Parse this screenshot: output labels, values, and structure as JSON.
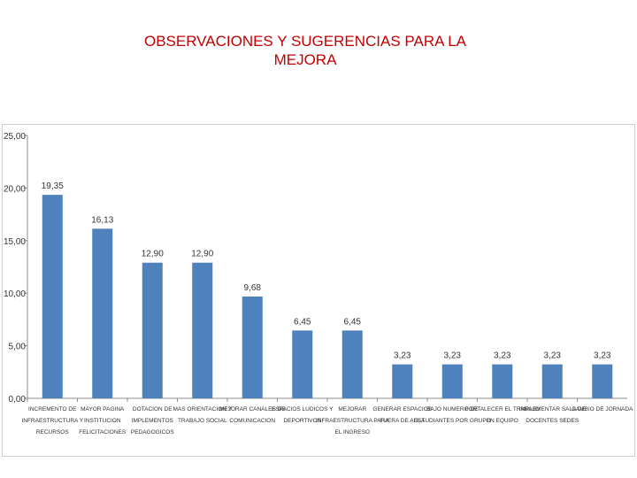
{
  "page": {
    "title_line1": "OBSERVACIONES Y SUGERENCIAS  PARA LA",
    "title_line2": "MEJORA"
  },
  "colors": {
    "title": "#c00000",
    "bar": "#4f81bd",
    "axis": "#8c8c8c"
  },
  "chart_data": {
    "type": "bar",
    "title": "",
    "xlabel": "",
    "ylabel": "",
    "ylim": [
      0,
      25
    ],
    "yticks": [
      "0,00",
      "5,00",
      "10,00",
      "15,00",
      "20,00",
      "25,00"
    ],
    "ytick_values": [
      0,
      5,
      10,
      15,
      20,
      25
    ],
    "grid": false,
    "categories": [
      [
        "INCREMENTO DE",
        "INFRAESTRUCTURA Y",
        "RECURSOS"
      ],
      [
        "MAYOR PAGINA",
        "INSTITUCION",
        "FELICITACIONES"
      ],
      [
        "DOTACION DE",
        "IMPLEMENTOS",
        "PEDAGOGICOS"
      ],
      [
        "MAS ORIENTACION Y",
        "TRABAJO SOCIAL"
      ],
      [
        "MEJORAR CANALES DE",
        "COMUNICACION"
      ],
      [
        "ESPACIOS LUDICOS Y",
        "DEPORTIVOS"
      ],
      [
        "MEJORAR",
        "INFRAESTRUCTURA PARA",
        "EL INGRESO"
      ],
      [
        "GENERAR ESPACIOS",
        "FUERA DE AULA"
      ],
      [
        "BAJO NUMERO DE",
        "ESTUDIANTES POR GRUPO"
      ],
      [
        "FORTALECER EL TRABAJO",
        "EN EQUIPO"
      ],
      [
        "IMPLEMENTAR SALA DE",
        "DOCENTES SEDES"
      ],
      [
        "CAMBIO DE JORNADA"
      ]
    ],
    "values": [
      19.35,
      16.13,
      12.9,
      12.9,
      9.68,
      6.45,
      6.45,
      3.23,
      3.23,
      3.23,
      3.23,
      3.23
    ],
    "value_labels": [
      "19,35",
      "16,13",
      "12,90",
      "12,90",
      "9,68",
      "6,45",
      "6,45",
      "3,23",
      "3,23",
      "3,23",
      "3,23",
      "3,23"
    ]
  }
}
